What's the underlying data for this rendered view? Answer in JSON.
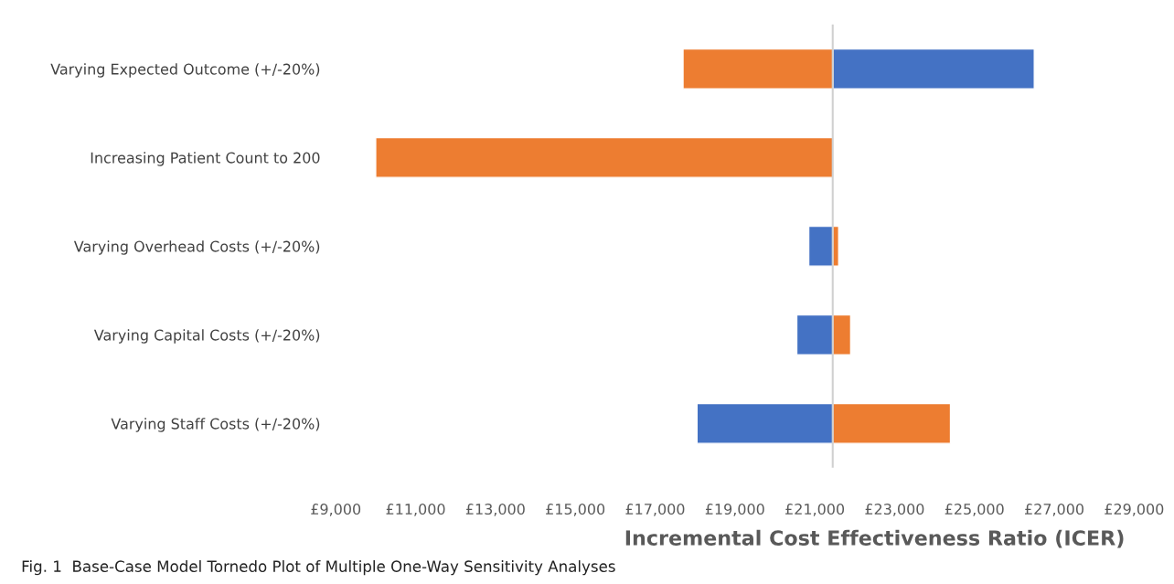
{
  "chart_data": {
    "type": "bar",
    "orientation": "horizontal",
    "categories": [
      "Varying Expected Outcome (+/-20%)",
      "Increasing Patient Count to 200",
      "Varying Overhead Costs (+/-20%)",
      "Varying Capital Costs (+/-20%)",
      "Varying Staff Costs (+/-20%)"
    ],
    "series": [
      {
        "color": "#4472c4",
        "base": [
          21450,
          null,
          20850,
          20550,
          18050
        ],
        "values": [
          5050,
          null,
          600,
          900,
          3400
        ]
      },
      {
        "color": "#ed7d31",
        "base": [
          17700,
          10000,
          21450,
          21450,
          21450
        ],
        "values": [
          3750,
          11450,
          150,
          450,
          2950
        ]
      }
    ],
    "xlim": [
      9000,
      29000
    ],
    "xticks": [
      {
        "value": 9000,
        "label": "£9,000"
      },
      {
        "value": 11000,
        "label": "£11,000"
      },
      {
        "value": 13000,
        "label": "£13,000"
      },
      {
        "value": 15000,
        "label": "£15,000"
      },
      {
        "value": 17000,
        "label": "£17,000"
      },
      {
        "value": 19000,
        "label": "£19,000"
      },
      {
        "value": 21000,
        "label": "£21,000"
      },
      {
        "value": 23000,
        "label": "£23,000"
      },
      {
        "value": 25000,
        "label": "£25,000"
      },
      {
        "value": 27000,
        "label": "£27,000"
      },
      {
        "value": 29000,
        "label": "£29,000"
      }
    ],
    "ref_lines": [
      {
        "axis": "x",
        "value": 21450,
        "color": "#d0d0d0"
      }
    ],
    "xlabel": "Incremental Cost Effectiveness Ratio (ICER)",
    "annotations": [
      "Fig. 1  Base-Case Model Tornedo Plot of Multiple One-Way Sensitivity Analyses"
    ],
    "grid": false,
    "legend": false
  }
}
